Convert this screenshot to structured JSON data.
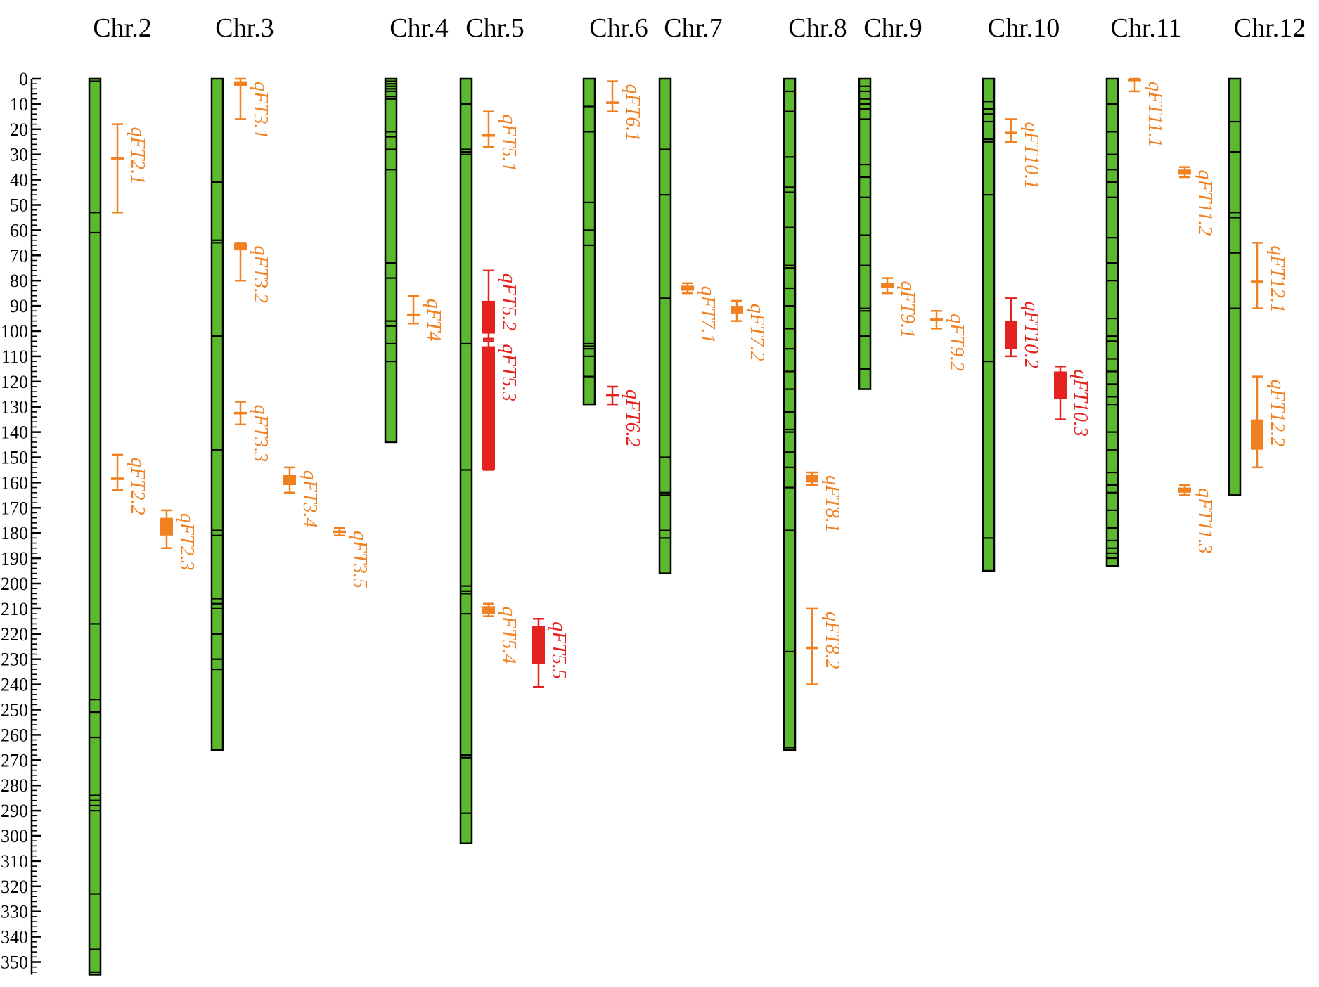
{
  "colors": {
    "chromosome_fill": "#5cb82f",
    "chromosome_stroke": "#000000",
    "qtl_minor": "#f08020",
    "qtl_major": "#e42320",
    "background": "#ffffff"
  },
  "axis": {
    "unit": "",
    "min": 0,
    "max": 355,
    "major_step": 10,
    "minor_step": 2,
    "labels": [
      "0",
      "10",
      "20",
      "30",
      "40",
      "50",
      "60",
      "70",
      "80",
      "90",
      "100",
      "110",
      "120",
      "130",
      "140",
      "150",
      "160",
      "170",
      "180",
      "190",
      "200",
      "210",
      "220",
      "230",
      "240",
      "250",
      "260",
      "270",
      "280",
      "290",
      "300",
      "310",
      "320",
      "330",
      "340",
      "350"
    ]
  },
  "chromosomes": [
    {
      "name": "Chr.2",
      "length": 355,
      "markers": [
        0,
        1,
        53,
        61,
        216,
        246,
        251,
        261,
        284,
        286,
        288,
        290,
        323,
        345,
        354
      ]
    },
    {
      "name": "Chr.3",
      "length": 266,
      "markers": [
        41,
        64,
        65,
        102,
        147,
        179,
        181,
        206,
        208,
        210,
        220,
        230,
        234
      ]
    },
    {
      "name": "Chr.4",
      "length": 144,
      "markers": [
        1,
        2,
        3,
        4,
        5,
        7,
        8,
        21,
        23,
        28,
        36,
        73,
        79,
        96,
        98,
        105,
        112
      ]
    },
    {
      "name": "Chr.5",
      "length": 303,
      "markers": [
        10,
        28,
        29,
        30,
        105,
        155,
        201,
        203,
        204,
        212,
        268,
        269,
        291
      ]
    },
    {
      "name": "Chr.6",
      "length": 129,
      "markers": [
        11,
        21,
        49,
        60,
        66,
        105,
        106,
        107,
        110,
        118
      ]
    },
    {
      "name": "Chr.7",
      "length": 196,
      "markers": [
        28,
        46,
        87,
        150,
        164,
        165,
        179,
        182
      ]
    },
    {
      "name": "Chr.8",
      "length": 266,
      "markers": [
        5,
        13,
        31,
        43,
        45,
        59,
        59,
        74,
        75,
        83,
        90,
        99,
        107,
        116,
        123,
        132,
        139,
        140,
        148,
        154,
        162,
        179,
        227,
        265
      ]
    },
    {
      "name": "Chr.9",
      "length": 123,
      "markers": [
        3,
        5,
        8,
        10,
        12,
        16,
        34,
        39,
        47,
        62,
        74,
        91,
        92,
        102,
        115
      ]
    },
    {
      "name": "Chr.10",
      "length": 195,
      "markers": [
        9,
        12,
        14,
        17,
        24,
        25,
        46,
        112,
        182
      ]
    },
    {
      "name": "Chr.11",
      "length": 193,
      "markers": [
        10,
        21,
        30,
        36,
        41,
        47,
        63,
        73,
        80,
        95,
        102,
        104,
        111,
        116,
        121,
        126,
        129,
        140,
        147,
        156,
        161,
        164,
        171,
        178,
        183,
        186,
        188,
        190
      ]
    },
    {
      "name": "Chr.12",
      "length": 165,
      "markers": [
        17,
        29,
        53,
        55,
        69,
        91
      ]
    }
  ],
  "qtls": [
    {
      "label": "qFT2.1",
      "chromosome": "Chr.2",
      "ci_start": 18,
      "ci_end": 53,
      "box_start": 31,
      "box_end": 32,
      "peak": 31,
      "effect": "minor"
    },
    {
      "label": "qFT2.2",
      "chromosome": "Chr.2",
      "ci_start": 149,
      "ci_end": 163,
      "box_start": 158,
      "box_end": 159,
      "peak": 158,
      "effect": "minor"
    },
    {
      "label": "qFT2.3",
      "chromosome": "Chr.2",
      "ci_start": 171,
      "ci_end": 186,
      "box_start": 174,
      "box_end": 181,
      "peak": 177,
      "effect": "minor"
    },
    {
      "label": "qFT3.1",
      "chromosome": "Chr.3",
      "ci_start": 0,
      "ci_end": 16,
      "box_start": 1,
      "box_end": 3,
      "peak": 2,
      "effect": "minor"
    },
    {
      "label": "qFT3.2",
      "chromosome": "Chr.3",
      "ci_start": 65,
      "ci_end": 80,
      "box_start": 65,
      "box_end": 68,
      "peak": 66,
      "effect": "minor"
    },
    {
      "label": "qFT3.3",
      "chromosome": "Chr.3",
      "ci_start": 128,
      "ci_end": 137,
      "box_start": 132,
      "box_end": 133,
      "peak": 132,
      "effect": "minor"
    },
    {
      "label": "qFT3.4",
      "chromosome": "Chr.3",
      "ci_start": 154,
      "ci_end": 164,
      "box_start": 157,
      "box_end": 161,
      "peak": 159,
      "effect": "minor"
    },
    {
      "label": "qFT3.5",
      "chromosome": "Chr.3",
      "ci_start": 178,
      "ci_end": 181,
      "box_start": 179,
      "box_end": 180,
      "peak": 179,
      "effect": "minor"
    },
    {
      "label": "qFT4",
      "chromosome": "Chr.4",
      "ci_start": 86,
      "ci_end": 97,
      "box_start": 93,
      "box_end": 94,
      "peak": 93,
      "effect": "minor"
    },
    {
      "label": "qFT5.1",
      "chromosome": "Chr.5",
      "ci_start": 13,
      "ci_end": 27,
      "box_start": 22,
      "box_end": 23,
      "peak": 22,
      "effect": "minor"
    },
    {
      "label": "qFT5.2",
      "chromosome": "Chr.5",
      "ci_start": 76,
      "ci_end": 103,
      "box_start": 88,
      "box_end": 101,
      "peak": 95,
      "effect": "major"
    },
    {
      "label": "qFT5.3",
      "chromosome": "Chr.5",
      "ci_start": 104,
      "ci_end": 155,
      "box_start": 106,
      "box_end": 155,
      "peak": 130,
      "effect": "major"
    },
    {
      "label": "qFT5.4",
      "chromosome": "Chr.5",
      "ci_start": 208,
      "ci_end": 213,
      "box_start": 209,
      "box_end": 212,
      "peak": 210,
      "effect": "minor"
    },
    {
      "label": "qFT5.5",
      "chromosome": "Chr.5",
      "ci_start": 214,
      "ci_end": 241,
      "box_start": 217,
      "box_end": 232,
      "peak": 225,
      "effect": "major"
    },
    {
      "label": "qFT6.1",
      "chromosome": "Chr.6",
      "ci_start": 1,
      "ci_end": 13,
      "box_start": 9,
      "box_end": 10,
      "peak": 9,
      "effect": "minor"
    },
    {
      "label": "qFT6.2",
      "chromosome": "Chr.6",
      "ci_start": 122,
      "ci_end": 129,
      "box_start": 125,
      "box_end": 126,
      "peak": 125,
      "effect": "major"
    },
    {
      "label": "qFT7.1",
      "chromosome": "Chr.7",
      "ci_start": 81,
      "ci_end": 85,
      "box_start": 82,
      "box_end": 84,
      "peak": 83,
      "effect": "minor"
    },
    {
      "label": "qFT7.2",
      "chromosome": "Chr.7",
      "ci_start": 88,
      "ci_end": 96,
      "box_start": 90,
      "box_end": 93,
      "peak": 91,
      "effect": "minor"
    },
    {
      "label": "qFT8.1",
      "chromosome": "Chr.8",
      "ci_start": 156,
      "ci_end": 161,
      "box_start": 157,
      "box_end": 160,
      "peak": 158,
      "effect": "minor"
    },
    {
      "label": "qFT8.2",
      "chromosome": "Chr.8",
      "ci_start": 210,
      "ci_end": 240,
      "box_start": 225,
      "box_end": 226,
      "peak": 225,
      "effect": "minor"
    },
    {
      "label": "qFT9.1",
      "chromosome": "Chr.9",
      "ci_start": 79,
      "ci_end": 85,
      "box_start": 81,
      "box_end": 83,
      "peak": 82,
      "effect": "minor"
    },
    {
      "label": "qFT9.2",
      "chromosome": "Chr.9",
      "ci_start": 92,
      "ci_end": 99,
      "box_start": 95,
      "box_end": 96,
      "peak": 95,
      "effect": "minor"
    },
    {
      "label": "qFT10.1",
      "chromosome": "Chr.10",
      "ci_start": 16,
      "ci_end": 25,
      "box_start": 21,
      "box_end": 22,
      "peak": 21,
      "effect": "minor"
    },
    {
      "label": "qFT10.2",
      "chromosome": "Chr.10",
      "ci_start": 87,
      "ci_end": 110,
      "box_start": 96,
      "box_end": 107,
      "peak": 101,
      "effect": "major"
    },
    {
      "label": "qFT10.3",
      "chromosome": "Chr.10",
      "ci_start": 114,
      "ci_end": 135,
      "box_start": 116,
      "box_end": 127,
      "peak": 121,
      "effect": "major"
    },
    {
      "label": "qFT11.1",
      "chromosome": "Chr.11",
      "ci_start": 0,
      "ci_end": 5,
      "box_start": 0,
      "box_end": 1,
      "peak": 0,
      "effect": "minor"
    },
    {
      "label": "qFT11.2",
      "chromosome": "Chr.11",
      "ci_start": 35,
      "ci_end": 39,
      "box_start": 36,
      "box_end": 38,
      "peak": 37,
      "effect": "minor"
    },
    {
      "label": "qFT11.3",
      "chromosome": "Chr.11",
      "ci_start": 161,
      "ci_end": 165,
      "box_start": 162,
      "box_end": 164,
      "peak": 163,
      "effect": "minor"
    },
    {
      "label": "qFT12.1",
      "chromosome": "Chr.12",
      "ci_start": 65,
      "ci_end": 91,
      "box_start": 80,
      "box_end": 81,
      "peak": 80,
      "effect": "minor"
    },
    {
      "label": "qFT12.2",
      "chromosome": "Chr.12",
      "ci_start": 118,
      "ci_end": 154,
      "box_start": 135,
      "box_end": 147,
      "peak": 141,
      "effect": "minor"
    }
  ]
}
